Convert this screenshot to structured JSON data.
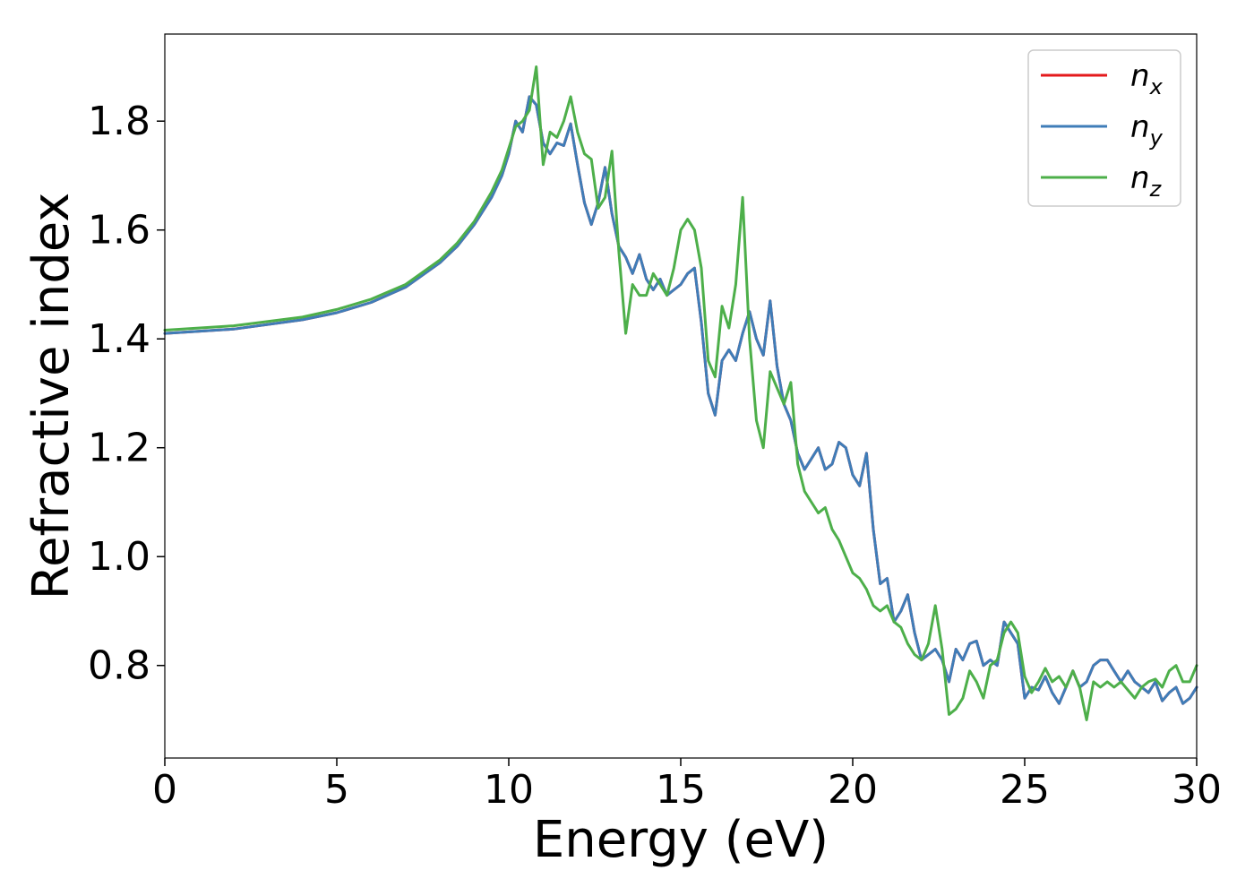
{
  "chart_data": {
    "type": "line",
    "xlabel": "Energy (eV)",
    "ylabel": "Refractive index",
    "xlim": [
      0,
      30
    ],
    "ylim": [
      0.63,
      1.96
    ],
    "xticks": [
      0,
      5,
      10,
      15,
      20,
      25,
      30
    ],
    "xtick_labels": [
      "0",
      "5",
      "10",
      "15",
      "20",
      "25",
      "30"
    ],
    "yticks": [
      0.8,
      1.0,
      1.2,
      1.4,
      1.6,
      1.8
    ],
    "ytick_labels": [
      "0.8",
      "1.0",
      "1.2",
      "1.4",
      "1.6",
      "1.8"
    ],
    "grid": false,
    "legend_position": "top-right",
    "series": [
      {
        "name": "n",
        "subscript": "x",
        "color": "#e41a1c",
        "x": [
          0,
          2,
          4,
          5,
          6,
          7,
          8,
          8.5,
          9,
          9.5,
          9.8,
          10.0,
          10.2,
          10.4,
          10.6,
          10.8,
          11.0,
          11.2,
          11.4,
          11.6,
          11.8,
          12.0,
          12.2,
          12.4,
          12.6,
          12.8,
          13.0,
          13.2,
          13.4,
          13.6,
          13.8,
          14.0,
          14.2,
          14.4,
          14.6,
          14.8,
          15.0,
          15.2,
          15.4,
          15.6,
          15.8,
          16.0,
          16.2,
          16.4,
          16.6,
          16.8,
          17.0,
          17.2,
          17.4,
          17.6,
          17.8,
          18.0,
          18.2,
          18.4,
          18.6,
          18.8,
          19.0,
          19.2,
          19.4,
          19.6,
          19.8,
          20.0,
          20.2,
          20.4,
          20.6,
          20.8,
          21.0,
          21.2,
          21.4,
          21.6,
          21.8,
          22.0,
          22.2,
          22.4,
          22.6,
          22.8,
          23.0,
          23.2,
          23.4,
          23.6,
          23.8,
          24.0,
          24.2,
          24.4,
          24.6,
          24.8,
          25.0,
          25.2,
          25.4,
          25.6,
          25.8,
          26.0,
          26.2,
          26.4,
          26.6,
          26.8,
          27.0,
          27.2,
          27.4,
          27.6,
          27.8,
          28.0,
          28.2,
          28.4,
          28.6,
          28.8,
          29.0,
          29.2,
          29.4,
          29.6,
          29.8,
          30.0
        ],
        "y": [
          1.41,
          1.418,
          1.435,
          1.448,
          1.467,
          1.495,
          1.54,
          1.57,
          1.61,
          1.66,
          1.7,
          1.74,
          1.8,
          1.78,
          1.845,
          1.83,
          1.76,
          1.74,
          1.76,
          1.755,
          1.795,
          1.72,
          1.65,
          1.61,
          1.65,
          1.715,
          1.63,
          1.57,
          1.55,
          1.52,
          1.555,
          1.51,
          1.49,
          1.51,
          1.48,
          1.49,
          1.5,
          1.52,
          1.53,
          1.43,
          1.3,
          1.26,
          1.36,
          1.38,
          1.36,
          1.41,
          1.45,
          1.4,
          1.37,
          1.47,
          1.35,
          1.28,
          1.25,
          1.19,
          1.16,
          1.18,
          1.2,
          1.16,
          1.17,
          1.21,
          1.2,
          1.15,
          1.13,
          1.19,
          1.05,
          0.95,
          0.96,
          0.88,
          0.9,
          0.93,
          0.86,
          0.81,
          0.82,
          0.83,
          0.81,
          0.77,
          0.83,
          0.81,
          0.84,
          0.845,
          0.8,
          0.81,
          0.8,
          0.88,
          0.86,
          0.84,
          0.74,
          0.76,
          0.755,
          0.78,
          0.75,
          0.73,
          0.76,
          0.79,
          0.76,
          0.77,
          0.8,
          0.81,
          0.81,
          0.79,
          0.77,
          0.79,
          0.77,
          0.76,
          0.75,
          0.77,
          0.735,
          0.75,
          0.76,
          0.73,
          0.74,
          0.76
        ]
      },
      {
        "name": "n",
        "subscript": "y",
        "color": "#3f7db8",
        "x": [
          0,
          2,
          4,
          5,
          6,
          7,
          8,
          8.5,
          9,
          9.5,
          9.8,
          10.0,
          10.2,
          10.4,
          10.6,
          10.8,
          11.0,
          11.2,
          11.4,
          11.6,
          11.8,
          12.0,
          12.2,
          12.4,
          12.6,
          12.8,
          13.0,
          13.2,
          13.4,
          13.6,
          13.8,
          14.0,
          14.2,
          14.4,
          14.6,
          14.8,
          15.0,
          15.2,
          15.4,
          15.6,
          15.8,
          16.0,
          16.2,
          16.4,
          16.6,
          16.8,
          17.0,
          17.2,
          17.4,
          17.6,
          17.8,
          18.0,
          18.2,
          18.4,
          18.6,
          18.8,
          19.0,
          19.2,
          19.4,
          19.6,
          19.8,
          20.0,
          20.2,
          20.4,
          20.6,
          20.8,
          21.0,
          21.2,
          21.4,
          21.6,
          21.8,
          22.0,
          22.2,
          22.4,
          22.6,
          22.8,
          23.0,
          23.2,
          23.4,
          23.6,
          23.8,
          24.0,
          24.2,
          24.4,
          24.6,
          24.8,
          25.0,
          25.2,
          25.4,
          25.6,
          25.8,
          26.0,
          26.2,
          26.4,
          26.6,
          26.8,
          27.0,
          27.2,
          27.4,
          27.6,
          27.8,
          28.0,
          28.2,
          28.4,
          28.6,
          28.8,
          29.0,
          29.2,
          29.4,
          29.6,
          29.8,
          30.0
        ],
        "y": [
          1.41,
          1.418,
          1.435,
          1.448,
          1.467,
          1.495,
          1.54,
          1.57,
          1.61,
          1.66,
          1.7,
          1.74,
          1.8,
          1.78,
          1.845,
          1.83,
          1.76,
          1.74,
          1.76,
          1.755,
          1.795,
          1.72,
          1.65,
          1.61,
          1.65,
          1.715,
          1.63,
          1.57,
          1.55,
          1.52,
          1.555,
          1.51,
          1.49,
          1.51,
          1.48,
          1.49,
          1.5,
          1.52,
          1.53,
          1.43,
          1.3,
          1.26,
          1.36,
          1.38,
          1.36,
          1.41,
          1.45,
          1.4,
          1.37,
          1.47,
          1.35,
          1.28,
          1.25,
          1.19,
          1.16,
          1.18,
          1.2,
          1.16,
          1.17,
          1.21,
          1.2,
          1.15,
          1.13,
          1.19,
          1.05,
          0.95,
          0.96,
          0.88,
          0.9,
          0.93,
          0.86,
          0.81,
          0.82,
          0.83,
          0.81,
          0.77,
          0.83,
          0.81,
          0.84,
          0.845,
          0.8,
          0.81,
          0.8,
          0.88,
          0.86,
          0.84,
          0.74,
          0.76,
          0.755,
          0.78,
          0.75,
          0.73,
          0.76,
          0.79,
          0.76,
          0.77,
          0.8,
          0.81,
          0.81,
          0.79,
          0.77,
          0.79,
          0.77,
          0.76,
          0.75,
          0.77,
          0.735,
          0.75,
          0.76,
          0.73,
          0.74,
          0.76
        ]
      },
      {
        "name": "n",
        "subscript": "z",
        "color": "#4daf4a",
        "x": [
          0,
          2,
          4,
          5,
          6,
          7,
          8,
          8.5,
          9,
          9.5,
          9.8,
          10.0,
          10.2,
          10.4,
          10.6,
          10.8,
          11.0,
          11.2,
          11.4,
          11.6,
          11.8,
          12.0,
          12.2,
          12.4,
          12.6,
          12.8,
          13.0,
          13.2,
          13.4,
          13.6,
          13.8,
          14.0,
          14.2,
          14.4,
          14.6,
          14.8,
          15.0,
          15.2,
          15.4,
          15.6,
          15.8,
          16.0,
          16.2,
          16.4,
          16.6,
          16.8,
          17.0,
          17.2,
          17.4,
          17.6,
          17.8,
          18.0,
          18.2,
          18.4,
          18.6,
          18.8,
          19.0,
          19.2,
          19.4,
          19.6,
          19.8,
          20.0,
          20.2,
          20.4,
          20.6,
          20.8,
          21.0,
          21.2,
          21.4,
          21.6,
          21.8,
          22.0,
          22.2,
          22.4,
          22.6,
          22.8,
          23.0,
          23.2,
          23.4,
          23.6,
          23.8,
          24.0,
          24.2,
          24.4,
          24.6,
          24.8,
          25.0,
          25.2,
          25.4,
          25.6,
          25.8,
          26.0,
          26.2,
          26.4,
          26.6,
          26.8,
          27.0,
          27.2,
          27.4,
          27.6,
          27.8,
          28.0,
          28.2,
          28.4,
          28.6,
          28.8,
          29.0,
          29.2,
          29.4,
          29.6,
          29.8,
          30.0
        ],
        "y": [
          1.416,
          1.424,
          1.44,
          1.454,
          1.473,
          1.5,
          1.545,
          1.576,
          1.616,
          1.67,
          1.71,
          1.75,
          1.79,
          1.8,
          1.82,
          1.9,
          1.72,
          1.78,
          1.77,
          1.8,
          1.845,
          1.78,
          1.74,
          1.73,
          1.64,
          1.66,
          1.745,
          1.56,
          1.41,
          1.5,
          1.48,
          1.48,
          1.52,
          1.5,
          1.48,
          1.53,
          1.6,
          1.62,
          1.6,
          1.53,
          1.36,
          1.33,
          1.46,
          1.42,
          1.5,
          1.66,
          1.4,
          1.25,
          1.2,
          1.34,
          1.31,
          1.28,
          1.32,
          1.17,
          1.12,
          1.1,
          1.08,
          1.09,
          1.05,
          1.03,
          1.0,
          0.97,
          0.96,
          0.94,
          0.91,
          0.9,
          0.91,
          0.88,
          0.87,
          0.84,
          0.82,
          0.81,
          0.84,
          0.91,
          0.83,
          0.71,
          0.72,
          0.74,
          0.79,
          0.77,
          0.74,
          0.8,
          0.81,
          0.86,
          0.88,
          0.86,
          0.78,
          0.75,
          0.77,
          0.795,
          0.77,
          0.78,
          0.76,
          0.79,
          0.76,
          0.7,
          0.77,
          0.76,
          0.77,
          0.76,
          0.77,
          0.755,
          0.74,
          0.76,
          0.77,
          0.775,
          0.76,
          0.79,
          0.8,
          0.77,
          0.77,
          0.8
        ]
      }
    ]
  }
}
